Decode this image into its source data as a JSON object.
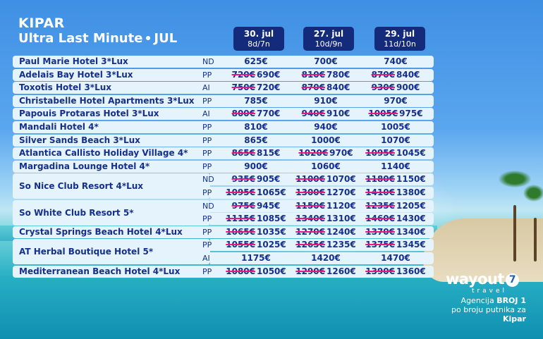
{
  "header": {
    "title": "KIPAR",
    "subtitle": "Ultra Last Minute",
    "month": "JUL"
  },
  "columns": [
    {
      "date": "30. jul",
      "nights": "8d/7n"
    },
    {
      "date": "27. jul",
      "nights": "10d/9n"
    },
    {
      "date": "29. jul",
      "nights": "11d/10n"
    }
  ],
  "hotels": [
    {
      "name": "Paul Marie Hotel 3*Lux",
      "lines": [
        {
          "board": "ND",
          "prices": [
            {
              "old": "",
              "new": "625€"
            },
            {
              "old": "",
              "new": "700€"
            },
            {
              "old": "",
              "new": "740€"
            }
          ]
        }
      ]
    },
    {
      "name": "Adelais Bay Hotel 3*Lux",
      "lines": [
        {
          "board": "PP",
          "prices": [
            {
              "old": "720€",
              "new": "690€"
            },
            {
              "old": "810€",
              "new": "780€"
            },
            {
              "old": "870€",
              "new": "840€"
            }
          ]
        }
      ]
    },
    {
      "name": "Toxotis Hotel 3*Lux",
      "lines": [
        {
          "board": "AI",
          "prices": [
            {
              "old": "750€",
              "new": "720€"
            },
            {
              "old": "870€",
              "new": "840€"
            },
            {
              "old": "930€",
              "new": "900€"
            }
          ]
        }
      ]
    },
    {
      "name": "Christabelle Hotel Apartments 3*Lux",
      "lines": [
        {
          "board": "PP",
          "prices": [
            {
              "old": "",
              "new": "785€"
            },
            {
              "old": "",
              "new": "910€"
            },
            {
              "old": "",
              "new": "970€"
            }
          ]
        }
      ]
    },
    {
      "name": "Papouis Protaras Hotel 3*Lux",
      "lines": [
        {
          "board": "AI",
          "prices": [
            {
              "old": "800€",
              "new": "770€"
            },
            {
              "old": "940€",
              "new": "910€"
            },
            {
              "old": "1005€",
              "new": "975€"
            }
          ]
        }
      ]
    },
    {
      "name": "Mandali Hotel 4*",
      "lines": [
        {
          "board": "PP",
          "prices": [
            {
              "old": "",
              "new": "810€"
            },
            {
              "old": "",
              "new": "940€"
            },
            {
              "old": "",
              "new": "1005€"
            }
          ]
        }
      ]
    },
    {
      "name": "Silver Sands Beach 3*Lux",
      "lines": [
        {
          "board": "PP",
          "prices": [
            {
              "old": "",
              "new": "865€"
            },
            {
              "old": "",
              "new": "1000€"
            },
            {
              "old": "",
              "new": "1070€"
            }
          ]
        }
      ]
    },
    {
      "name": "Atlantica Callisto Holiday Village 4*",
      "lines": [
        {
          "board": "PP",
          "prices": [
            {
              "old": "865€",
              "new": "815€"
            },
            {
              "old": "1020€",
              "new": "970€"
            },
            {
              "old": "1095€",
              "new": "1045€"
            }
          ]
        }
      ]
    },
    {
      "name": "Margadina Lounge Hotel 4*",
      "lines": [
        {
          "board": "PP",
          "prices": [
            {
              "old": "",
              "new": "900€"
            },
            {
              "old": "",
              "new": "1060€"
            },
            {
              "old": "",
              "new": "1140€"
            }
          ]
        }
      ]
    },
    {
      "name": "So Nice Club Resort 4*Lux",
      "lines": [
        {
          "board": "ND",
          "prices": [
            {
              "old": "935€",
              "new": "905€"
            },
            {
              "old": "1100€",
              "new": "1070€"
            },
            {
              "old": "1180€",
              "new": "1150€"
            }
          ]
        },
        {
          "board": "PP",
          "prices": [
            {
              "old": "1095€",
              "new": "1065€"
            },
            {
              "old": "1300€",
              "new": "1270€"
            },
            {
              "old": "1410€",
              "new": "1380€"
            }
          ]
        }
      ]
    },
    {
      "name": "So White Club Resort 5*",
      "lines": [
        {
          "board": "ND",
          "prices": [
            {
              "old": "975€",
              "new": "945€"
            },
            {
              "old": "1150€",
              "new": "1120€"
            },
            {
              "old": "1235€",
              "new": "1205€"
            }
          ]
        },
        {
          "board": "PP",
          "prices": [
            {
              "old": "1115€",
              "new": "1085€"
            },
            {
              "old": "1340€",
              "new": "1310€"
            },
            {
              "old": "1460€",
              "new": "1430€"
            }
          ]
        }
      ]
    },
    {
      "name": "Crystal Springs Beach Hotel 4*Lux",
      "lines": [
        {
          "board": "PP",
          "prices": [
            {
              "old": "1065€",
              "new": "1035€"
            },
            {
              "old": "1270€",
              "new": "1240€"
            },
            {
              "old": "1370€",
              "new": "1340€"
            }
          ]
        }
      ]
    },
    {
      "name": "AT Herbal Boutique Hotel 5*",
      "lines": [
        {
          "board": "PP",
          "prices": [
            {
              "old": "1055€",
              "new": "1025€"
            },
            {
              "old": "1265€",
              "new": "1235€"
            },
            {
              "old": "1375€",
              "new": "1345€"
            }
          ]
        },
        {
          "board": "AI",
          "prices": [
            {
              "old": "",
              "new": "1175€"
            },
            {
              "old": "",
              "new": "1420€"
            },
            {
              "old": "",
              "new": "1470€"
            }
          ]
        }
      ]
    },
    {
      "name": "Mediterranean Beach Hotel 4*Lux",
      "lines": [
        {
          "board": "PP",
          "prices": [
            {
              "old": "1080€",
              "new": "1050€"
            },
            {
              "old": "1290€",
              "new": "1260€"
            },
            {
              "old": "1390€",
              "new": "1360€"
            }
          ]
        }
      ]
    }
  ],
  "brand": {
    "name": "wayout",
    "mark": "7",
    "tagline": "travel",
    "claim_prefix": "Agencija",
    "claim_bold": "BROJ 1",
    "claim_line2": "po broju putnika za",
    "claim_place": "Kipar"
  },
  "colors": {
    "row_bg": "#e5f3fd",
    "text": "#15308b",
    "header_box": "#142b7c",
    "strike": "#e6197f"
  }
}
